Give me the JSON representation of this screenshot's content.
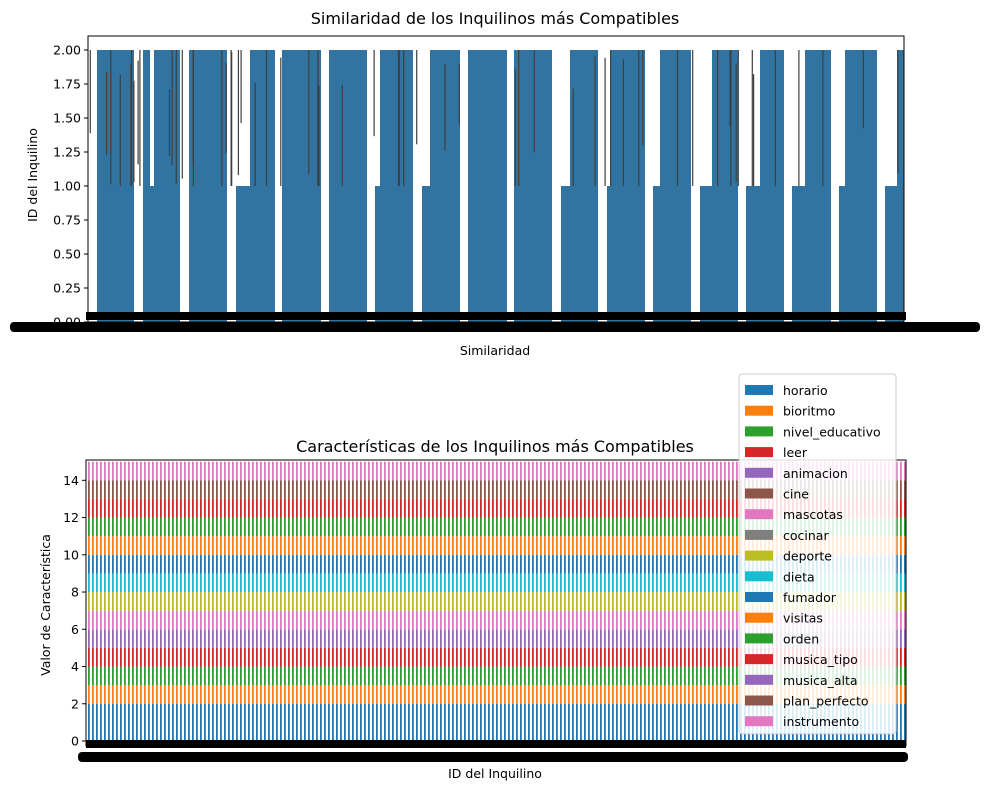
{
  "chart_data": [
    {
      "type": "bar",
      "title": "Similaridad de los Inquilinos más Compatibles",
      "xlabel": "Similaridad",
      "ylabel": "ID del Inquilino",
      "ylim": [
        0,
        2.0
      ],
      "yticks": [
        "0.00",
        "0.25",
        "0.50",
        "0.75",
        "1.00",
        "1.25",
        "1.50",
        "1.75",
        "2.00"
      ],
      "ytick_values": [
        0,
        0.25,
        0.5,
        0.75,
        1.0,
        1.25,
        1.5,
        1.75,
        2.0
      ],
      "bar_color": "#3274a1",
      "errorbar_color": "#3f3f3f",
      "grid": false,
      "levels_shown": [
        1.0,
        2.0
      ],
      "pattern": {
        "1.0": "groups of several adjacent bars forming wide blocks",
        "2.0": "groups of several adjacent bars forming wide blocks"
      },
      "xtick_labels_overlapping": true
    },
    {
      "type": "bar",
      "stacked": true,
      "title": "Características de los Inquilinos más Compatibles",
      "xlabel": "ID del Inquilino",
      "ylabel": "Valor de Característica",
      "ylim": [
        0,
        14.5
      ],
      "yticks": [
        "0",
        "2",
        "4",
        "6",
        "8",
        "10",
        "12",
        "14"
      ],
      "ytick_values": [
        0,
        2,
        4,
        6,
        8,
        10,
        12,
        14
      ],
      "grid": false,
      "legend_position": "upper-right",
      "xtick_labels_overlapping": true,
      "series": [
        {
          "name": "horario",
          "color": "#1f77b4",
          "value": 2
        },
        {
          "name": "bioritmo",
          "color": "#ff7f0e",
          "value": 1
        },
        {
          "name": "nivel_educativo",
          "color": "#2ca02c",
          "value": 1
        },
        {
          "name": "leer",
          "color": "#d62728",
          "value": 1
        },
        {
          "name": "animacion",
          "color": "#9467bd",
          "value": 1
        },
        {
          "name": "cine",
          "color": "#8c564b",
          "value": 0
        },
        {
          "name": "mascotas",
          "color": "#e377c2",
          "value": 1
        },
        {
          "name": "cocinar",
          "color": "#7f7f7f",
          "value": 0
        },
        {
          "name": "deporte",
          "color": "#bcbd22",
          "value": 1
        },
        {
          "name": "dieta",
          "color": "#17becf",
          "value": 1
        },
        {
          "name": "fumador",
          "color": "#1f77b4",
          "value": 1
        },
        {
          "name": "visitas",
          "color": "#ff7f0e",
          "value": 1
        },
        {
          "name": "orden",
          "color": "#2ca02c",
          "value": 1
        },
        {
          "name": "musica_tipo",
          "color": "#d62728",
          "value": 1
        },
        {
          "name": "musica_alta",
          "color": "#9467bd",
          "value": 0
        },
        {
          "name": "plan_perfecto",
          "color": "#8c564b",
          "value": 1
        },
        {
          "name": "instrumento",
          "color": "#e377c2",
          "value": 1
        }
      ]
    }
  ]
}
